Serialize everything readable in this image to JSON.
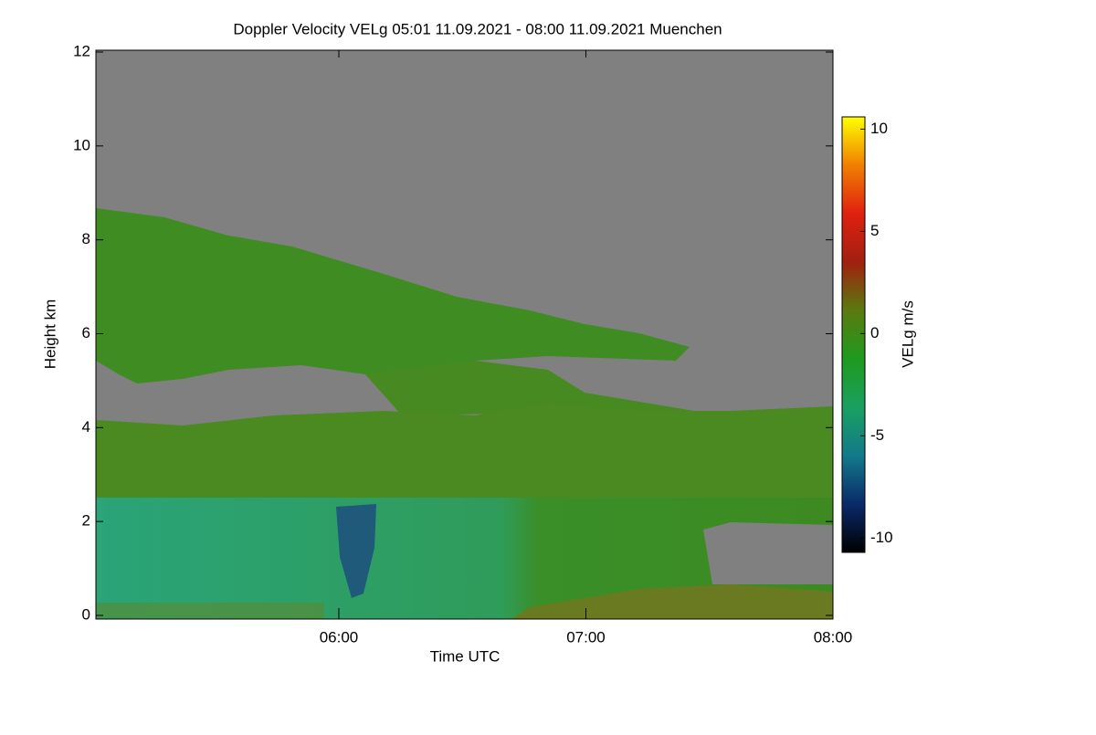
{
  "chart_data": {
    "type": "heatmap",
    "title": "Doppler Velocity VELg   05:01 11.09.2021 - 08:00 11.09.2021 Muenchen",
    "xlabel": "Time UTC",
    "ylabel": "Height km",
    "colorbar_label": "VELg m/s",
    "xlim": [
      301,
      480
    ],
    "xticks": [
      {
        "value": 360,
        "label": "06:00"
      },
      {
        "value": 420,
        "label": "07:00"
      },
      {
        "value": 480,
        "label": "08:00"
      }
    ],
    "ylim": [
      0,
      12
    ],
    "yticks": [
      0,
      2,
      4,
      6,
      8,
      10,
      12
    ],
    "clim": [
      -10.7,
      10.6
    ],
    "cticks": [
      -10,
      -5,
      0,
      5,
      10
    ],
    "colormap": [
      "#000000",
      "#0a2a6a",
      "#127a8a",
      "#1aa060",
      "#1e9a1e",
      "#5a7a10",
      "#a02010",
      "#e02010",
      "#f08000",
      "#ffff00"
    ]
  }
}
